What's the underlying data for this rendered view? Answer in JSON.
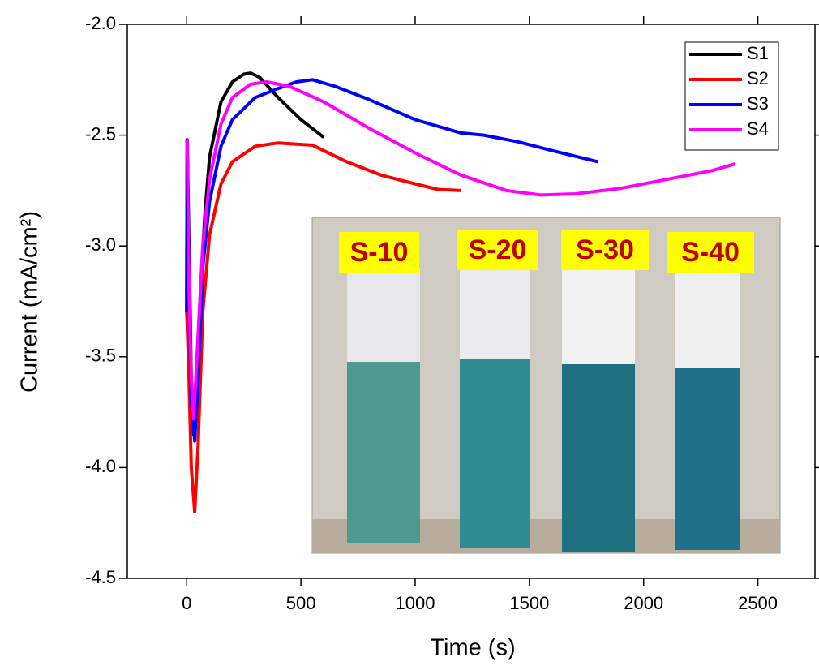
{
  "chart_data": {
    "type": "line",
    "xlabel": "Time (s)",
    "ylabel": "Current (mA/cm²)",
    "xlim": [
      -260,
      2750
    ],
    "ylim": [
      -4.5,
      -2.0
    ],
    "xticks": [
      0,
      500,
      1000,
      1500,
      2000,
      2500
    ],
    "yticks": [
      {
        "value": -2.0,
        "label": "-2.0"
      },
      -2.5,
      {
        "value": -3.0,
        "label": "-3.0"
      },
      -3.5,
      {
        "value": -4.0,
        "label": "-4.0"
      },
      -4.5
    ],
    "legend": "top-right",
    "series": [
      {
        "name": "S1",
        "color": "#000000",
        "x": [
          0,
          2,
          10,
          20,
          30,
          40,
          60,
          80,
          100,
          150,
          200,
          250,
          280,
          320,
          400,
          500,
          600
        ],
        "values": [
          -3.3,
          -2.52,
          -3.0,
          -3.6,
          -3.85,
          -3.7,
          -3.2,
          -2.85,
          -2.6,
          -2.35,
          -2.26,
          -2.225,
          -2.22,
          -2.24,
          -2.33,
          -2.43,
          -2.51
        ]
      },
      {
        "name": "S2",
        "color": "#ff0000",
        "x": [
          0,
          2,
          10,
          20,
          35,
          50,
          70,
          100,
          150,
          200,
          300,
          400,
          550,
          700,
          850,
          1000,
          1100,
          1200
        ],
        "values": [
          -3.3,
          -3.35,
          -3.6,
          -4.0,
          -4.2,
          -3.9,
          -3.3,
          -2.95,
          -2.72,
          -2.62,
          -2.55,
          -2.535,
          -2.545,
          -2.62,
          -2.68,
          -2.72,
          -2.745,
          -2.75
        ]
      },
      {
        "name": "S3",
        "color": "#0000ff",
        "x": [
          0,
          2,
          10,
          20,
          35,
          50,
          70,
          100,
          150,
          200,
          300,
          400,
          480,
          550,
          650,
          800,
          1000,
          1200,
          1300,
          1450,
          1600,
          1800
        ],
        "values": [
          -3.3,
          -2.52,
          -3.2,
          -3.7,
          -3.88,
          -3.6,
          -3.1,
          -2.8,
          -2.55,
          -2.43,
          -2.33,
          -2.29,
          -2.26,
          -2.25,
          -2.28,
          -2.34,
          -2.43,
          -2.49,
          -2.5,
          -2.53,
          -2.57,
          -2.62
        ]
      },
      {
        "name": "S4",
        "color": "#ff00ff",
        "x": [
          0,
          2,
          10,
          20,
          30,
          45,
          70,
          100,
          150,
          200,
          280,
          350,
          450,
          600,
          800,
          1000,
          1200,
          1400,
          1550,
          1700,
          1900,
          2100,
          2300,
          2400
        ],
        "values": [
          -2.52,
          -2.52,
          -3.2,
          -3.6,
          -3.78,
          -3.5,
          -3.0,
          -2.7,
          -2.45,
          -2.33,
          -2.27,
          -2.26,
          -2.28,
          -2.35,
          -2.47,
          -2.58,
          -2.68,
          -2.75,
          -2.77,
          -2.765,
          -2.74,
          -2.7,
          -2.66,
          -2.63
        ]
      }
    ],
    "inset_labels": [
      "S-10",
      "S-20",
      "S-30",
      "S-40"
    ]
  }
}
